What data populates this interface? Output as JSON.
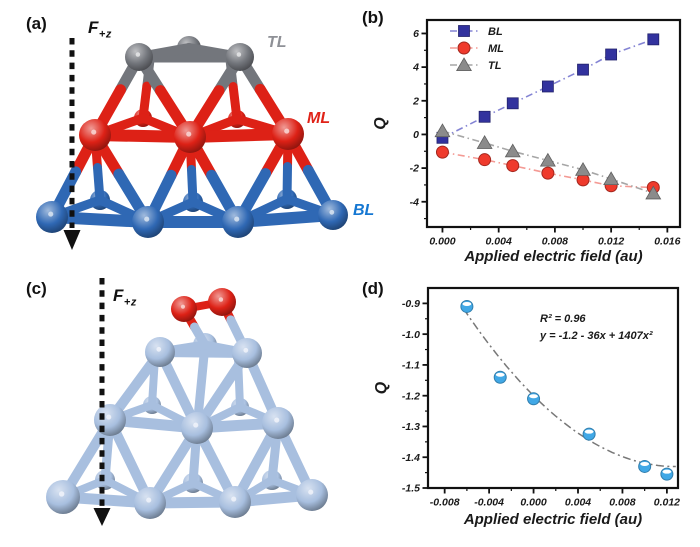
{
  "figure": {
    "panels": {
      "a": {
        "label": "(a)",
        "force": {
          "base": "F",
          "sub": "+z"
        },
        "layers": {
          "tl": "TL",
          "ml": "ML",
          "bl": "BL"
        }
      },
      "b": {
        "label": "(b)"
      },
      "c": {
        "label": "(c)",
        "force": {
          "base": "F",
          "sub": "+z"
        }
      },
      "d": {
        "label": "(d)"
      }
    },
    "colors": {
      "tl_gray": "#73767c",
      "ml_red": "#dd2116",
      "bl_blue": "#2f68b4",
      "cluster_steel": "#a8bfdf",
      "oxygen_red": "#dd2116",
      "arrow_black": "#111111",
      "arrow_glow": "#d7ecf9",
      "tl_label": "#8e9096",
      "ml_label": "#e02318",
      "bl_label": "#1577d2",
      "axis_black": "#111111"
    }
  },
  "chart_data": [
    {
      "id": "b",
      "type": "line",
      "x": [
        0.0,
        0.003,
        0.005,
        0.0075,
        0.01,
        0.012,
        0.015
      ],
      "series": [
        {
          "name": "BL",
          "marker": "square",
          "color": "#32329e",
          "line_color": "#8484d4",
          "values": [
            -0.2,
            1.05,
            1.85,
            2.85,
            3.85,
            4.75,
            5.65
          ]
        },
        {
          "name": "ML",
          "marker": "circle",
          "color": "#ef3a2c",
          "line_color": "#f49a94",
          "values": [
            -1.05,
            -1.5,
            -1.85,
            -2.3,
            -2.7,
            -3.05,
            -3.15
          ]
        },
        {
          "name": "TL",
          "marker": "triangle",
          "color": "#8b8b8b",
          "line_color": "#a6a6a6",
          "values": [
            0.2,
            -0.5,
            -1.0,
            -1.55,
            -2.1,
            -2.65,
            -3.5
          ]
        }
      ],
      "title": "",
      "xlabel": "Applied electric field (au)",
      "ylabel": "Q",
      "xlim": [
        -0.0011,
        0.0169
      ],
      "ylim": [
        -5.5,
        6.8
      ],
      "xticks": {
        "values": [
          0.0,
          0.004,
          0.008,
          0.012,
          0.016
        ],
        "labels": [
          "0.000",
          "0.004",
          "0.008",
          "0.012",
          "0.016"
        ],
        "minor_step": 0.002
      },
      "yticks": {
        "values": [
          -4,
          -2,
          0,
          2,
          4,
          6
        ],
        "labels": [
          "-4",
          "-2",
          "0",
          "2",
          "4",
          "6"
        ],
        "minor_step": 1
      },
      "legend_position": "top-left",
      "grid": false,
      "line_style": "dash-dot"
    },
    {
      "id": "d",
      "type": "scatter",
      "x": [
        -0.006,
        -0.003,
        0.0,
        0.005,
        0.01,
        0.012
      ],
      "series": [
        {
          "name": "Q",
          "marker": "halfcircle",
          "color": "#41a8e6",
          "values": [
            -0.91,
            -1.14,
            -1.21,
            -1.325,
            -1.43,
            -1.455
          ]
        }
      ],
      "fit": {
        "type": "quadratic",
        "coefficients": [
          -1.2,
          -36,
          1407
        ],
        "r_squared_label": "R² = 0.96",
        "equation": "y = -1.2 - 36x + 1407x²",
        "color": "#787878",
        "x_range": [
          -0.0063,
          0.0128
        ]
      },
      "title": "",
      "xlabel": "Applied electric field (au)",
      "ylabel": "Q",
      "xlim": [
        -0.0095,
        0.013
      ],
      "ylim": [
        -1.5,
        -0.85
      ],
      "xticks": {
        "values": [
          -0.008,
          -0.004,
          0.0,
          0.004,
          0.008,
          0.012
        ],
        "labels": [
          "-0.008",
          "-0.004",
          "0.000",
          "0.004",
          "0.008",
          "0.012"
        ],
        "minor_step": 0.002
      },
      "yticks": {
        "values": [
          -0.9,
          -1.0,
          -1.1,
          -1.2,
          -1.3,
          -1.4,
          -1.5
        ],
        "labels": [
          "-0.9",
          "-1.0",
          "-1.1",
          "-1.2",
          "-1.3",
          "-1.4",
          "-1.5"
        ],
        "minor_step": 0.05
      },
      "legend_position": "none",
      "grid": false,
      "line_style": "dash-dot"
    }
  ]
}
